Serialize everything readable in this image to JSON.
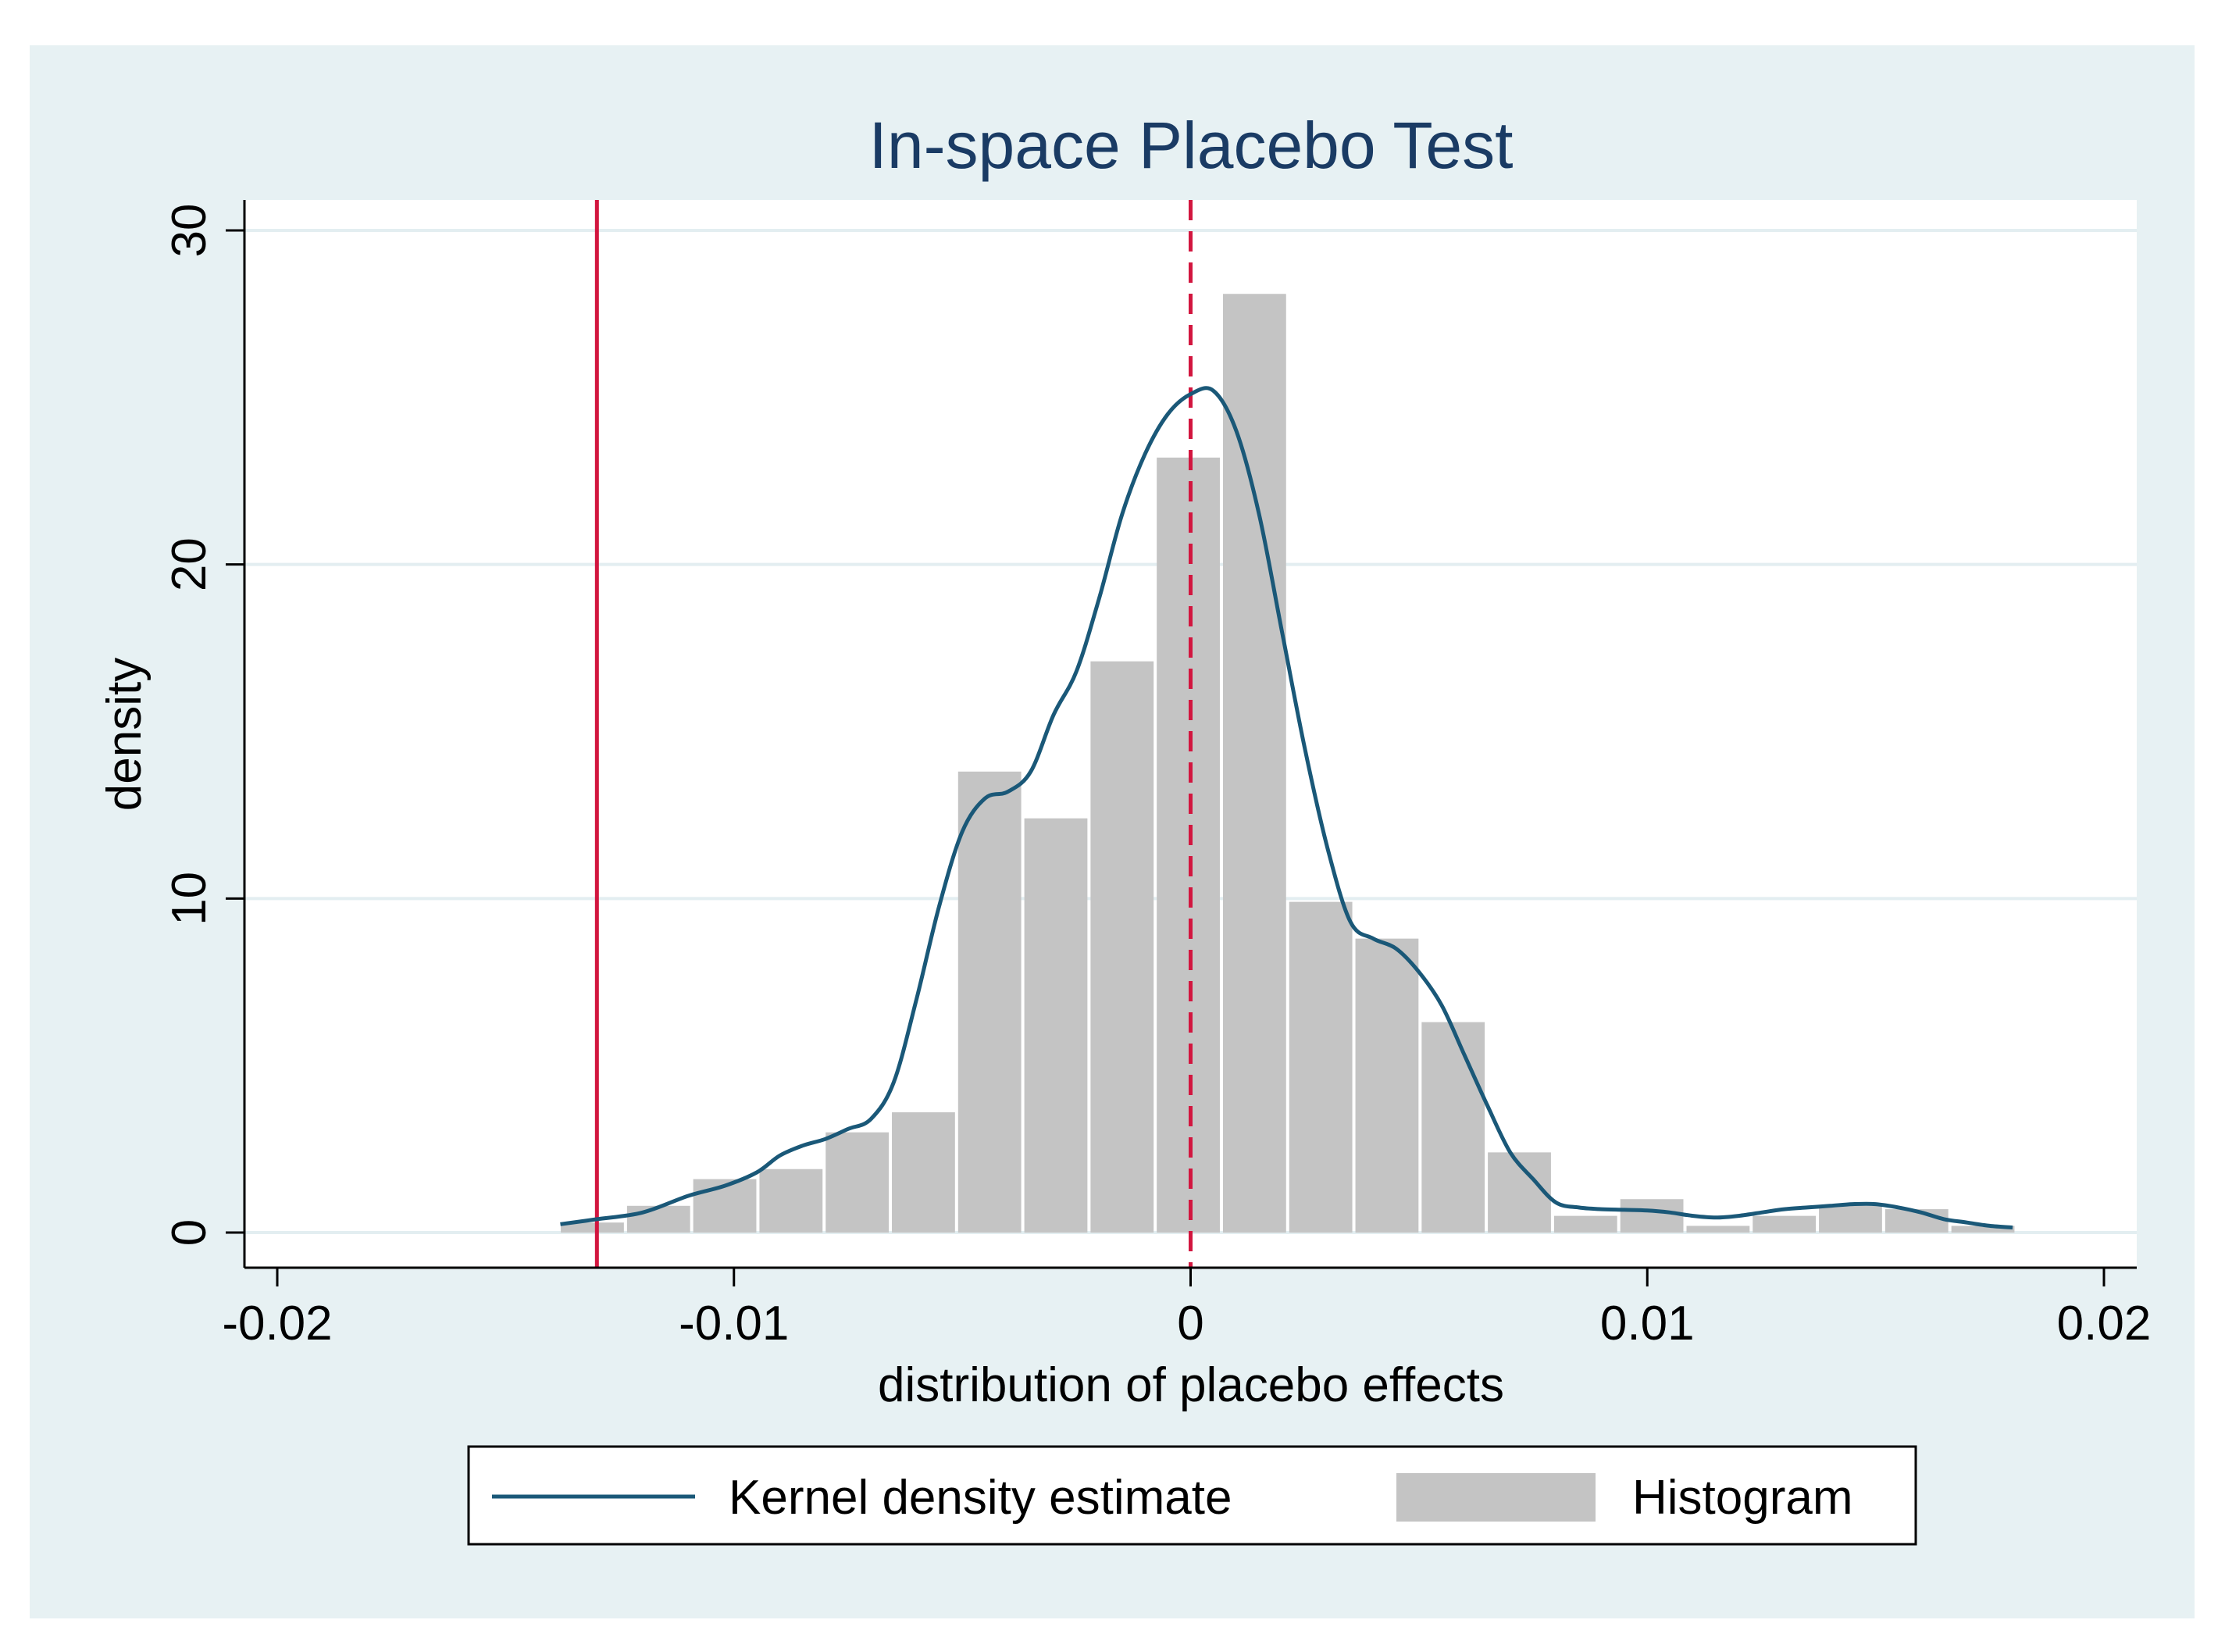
{
  "colors": {
    "outer_background": "#e7f1f3",
    "plot_background": "#ffffff",
    "gridline": "#e3eef1",
    "title": "#1a3b64",
    "text": "#000000",
    "histogram_fill": "#c4c4c4",
    "kde_line": "#1a5878",
    "reference_line": "#d2163f"
  },
  "chart_data": {
    "type": "bar",
    "title": "In-space Placebo Test",
    "xlabel": "distribution of placebo effects",
    "ylabel": "density",
    "xlim": [
      -0.02,
      0.02
    ],
    "ylim": [
      0,
      30
    ],
    "x_ticks": [
      -0.02,
      -0.01,
      0,
      0.01,
      0.02
    ],
    "x_tick_labels": [
      "-0.02",
      "-0.01",
      "0",
      "0.01",
      "0.02"
    ],
    "y_ticks": [
      0,
      10,
      20,
      30
    ],
    "y_tick_labels": [
      "0",
      "10",
      "20",
      "30"
    ],
    "grid": true,
    "legend": {
      "position": "bottom",
      "entries": [
        {
          "label": "Kernel density estimate",
          "type": "line"
        },
        {
          "label": "Histogram",
          "type": "bar"
        }
      ]
    },
    "series": [
      {
        "name": "Histogram",
        "type": "bar",
        "bin_width": 0.00145,
        "bin_centers": [
          -0.0131,
          -0.01165,
          -0.0102,
          -0.00875,
          -0.0073,
          -0.00585,
          -0.0044,
          -0.00295,
          -0.0015,
          -5e-05,
          0.0014,
          0.00285,
          0.0043,
          0.00575,
          0.0072,
          0.00865,
          0.0101,
          0.01155,
          0.013,
          0.01445,
          0.0159,
          0.01735
        ],
        "values": [
          0.3,
          0.8,
          1.6,
          1.9,
          3.0,
          3.6,
          13.8,
          12.4,
          17.1,
          23.2,
          28.1,
          9.9,
          8.8,
          6.3,
          2.4,
          0.5,
          1.0,
          0.2,
          0.5,
          0.8,
          0.7,
          0.2
        ]
      },
      {
        "name": "Kernel density estimate",
        "type": "line",
        "x": [
          -0.0138,
          -0.013,
          -0.012,
          -0.011,
          -0.0102,
          -0.0095,
          -0.009,
          -0.0085,
          -0.008,
          -0.0075,
          -0.007,
          -0.0065,
          -0.006,
          -0.0055,
          -0.005,
          -0.0045,
          -0.004,
          -0.0035,
          -0.003,
          -0.0025,
          -0.002,
          -0.0015,
          -0.001,
          -0.0005,
          0,
          0.0005,
          0.001,
          0.0015,
          0.002,
          0.0025,
          0.003,
          0.0035,
          0.004,
          0.0045,
          0.005,
          0.0055,
          0.006,
          0.0065,
          0.007,
          0.0075,
          0.008,
          0.0085,
          0.009,
          0.0095,
          0.01,
          0.0105,
          0.011,
          0.0115,
          0.012,
          0.0125,
          0.013,
          0.0135,
          0.014,
          0.0145,
          0.015,
          0.0155,
          0.016,
          0.0165,
          0.017,
          0.0175,
          0.018
        ],
        "values": [
          0.25,
          0.4,
          0.6,
          1.1,
          1.4,
          1.8,
          2.3,
          2.6,
          2.8,
          3.1,
          3.4,
          4.5,
          7.0,
          9.8,
          12.0,
          13.0,
          13.2,
          13.8,
          15.5,
          16.8,
          19.0,
          21.5,
          23.3,
          24.5,
          25.1,
          25.2,
          24.0,
          21.5,
          18.0,
          14.5,
          11.5,
          9.3,
          8.8,
          8.5,
          7.8,
          6.8,
          5.3,
          3.8,
          2.4,
          1.6,
          0.9,
          0.75,
          0.7,
          0.68,
          0.66,
          0.6,
          0.5,
          0.45,
          0.5,
          0.6,
          0.7,
          0.75,
          0.8,
          0.85,
          0.85,
          0.75,
          0.6,
          0.4,
          0.3,
          0.2,
          0.15
        ]
      }
    ],
    "reference_lines": [
      {
        "name": "actual effect",
        "x": -0.013,
        "style": "solid"
      },
      {
        "name": "zero",
        "x": 0,
        "style": "dashed"
      }
    ]
  }
}
